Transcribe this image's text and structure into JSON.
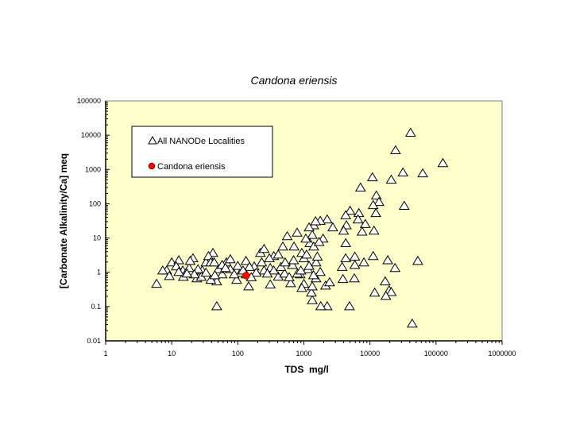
{
  "chart_data": {
    "type": "scatter",
    "title": "Candona eriensis",
    "xlabel": "TDS  mg/l",
    "ylabel": "[Carbonate Alkalinity/Ca] meq",
    "xscale": "log",
    "yscale": "log",
    "xlim": [
      1,
      1000000
    ],
    "ylim": [
      0.01,
      100000
    ],
    "xticks": [
      "1",
      "10",
      "100",
      "1000",
      "10000",
      "100000",
      "1000000"
    ],
    "yticks": [
      "0.01",
      "0.1",
      "1",
      "10",
      "100",
      "1000",
      "10000",
      "100000"
    ],
    "grid": false,
    "legend_placement": "top-left",
    "plot_background": "#FFFFCC",
    "series": [
      {
        "name": "All NANODe Localities",
        "marker": "triangle-open",
        "color": "#000000",
        "points": [
          [
            41200,
            11500
          ],
          [
            24400,
            3550
          ],
          [
            127000,
            1500
          ],
          [
            63000,
            750
          ],
          [
            31600,
            800
          ],
          [
            21000,
            490
          ],
          [
            10900,
            575
          ],
          [
            7200,
            290
          ],
          [
            12500,
            170
          ],
          [
            13700,
            110
          ],
          [
            11200,
            89
          ],
          [
            33000,
            85
          ],
          [
            12300,
            52
          ],
          [
            5000,
            61
          ],
          [
            6800,
            52
          ],
          [
            6600,
            34
          ],
          [
            8500,
            25
          ],
          [
            7600,
            15
          ],
          [
            11500,
            16
          ],
          [
            4400,
            23
          ],
          [
            4300,
            45
          ],
          [
            4000,
            16
          ],
          [
            2250,
            34
          ],
          [
            2740,
            20
          ],
          [
            1770,
            31
          ],
          [
            1410,
            23
          ],
          [
            1340,
            12
          ],
          [
            1950,
            9.4
          ],
          [
            4300,
            6.9
          ],
          [
            5900,
            2.8
          ],
          [
            4300,
            2.5
          ],
          [
            5900,
            1.6
          ],
          [
            3800,
            1.4
          ],
          [
            8100,
            1.9
          ],
          [
            11200,
            2.9
          ],
          [
            18600,
            2.2
          ],
          [
            53000,
            2.1
          ],
          [
            24000,
            1.3
          ],
          [
            17000,
            0.53
          ],
          [
            19500,
            0.29
          ],
          [
            11800,
            0.25
          ],
          [
            21000,
            0.26
          ],
          [
            17400,
            0.2
          ],
          [
            3900,
            0.62
          ],
          [
            5800,
            0.65
          ],
          [
            4900,
            0.1
          ],
          [
            43600,
            0.031
          ],
          [
            2250,
            0.1
          ],
          [
            2130,
            0.4
          ],
          [
            2450,
            0.5
          ],
          [
            1800,
            0.1
          ],
          [
            1340,
            0.15
          ],
          [
            1300,
            0.25
          ],
          [
            1000,
            0.45
          ],
          [
            5.9,
            0.45
          ],
          [
            10,
            1.9
          ],
          [
            8.4,
            1.1
          ],
          [
            12.8,
            2.2
          ],
          [
            9.2,
            0.76
          ],
          [
            14.7,
            1.1
          ],
          [
            18.3,
            1.3
          ],
          [
            21,
            2.5
          ],
          [
            24,
            0.65
          ],
          [
            29,
            1.1
          ],
          [
            33,
            1.9
          ],
          [
            42,
            3.6
          ],
          [
            36,
            2.9
          ],
          [
            48,
            0.53
          ],
          [
            48,
            0.1
          ],
          [
            58,
            0.85
          ],
          [
            67,
            1.9
          ],
          [
            77,
            1.2
          ],
          [
            96,
            0.59
          ],
          [
            110,
            0.95
          ],
          [
            133,
            2.1
          ],
          [
            146,
            0.38
          ],
          [
            177,
            1.45
          ],
          [
            220,
            3.6
          ],
          [
            250,
            4.7
          ],
          [
            310,
            1.3
          ],
          [
            350,
            2.9
          ],
          [
            410,
            0.73
          ],
          [
            480,
            5.5
          ],
          [
            560,
            11
          ],
          [
            670,
            1.6
          ],
          [
            790,
            14
          ],
          [
            880,
            0.85
          ],
          [
            1000,
            2.5
          ],
          [
            1150,
            1.2
          ],
          [
            1530,
            1.9
          ],
          [
            630,
            0.47
          ],
          [
            510,
            0.9
          ],
          [
            350,
            1.1
          ],
          [
            250,
            1.1
          ],
          [
            190,
            0.95
          ],
          [
            150,
            1.4
          ],
          [
            88,
            0.85
          ],
          [
            51,
            1.2
          ],
          [
            39,
            1.9
          ],
          [
            28,
            0.72
          ],
          [
            19,
            2.1
          ],
          [
            15,
            0.72
          ],
          [
            11.7,
            1.45
          ],
          [
            7.3,
            1.1
          ],
          [
            25,
            1.2
          ],
          [
            77,
            2.35
          ],
          [
            100,
            1.5
          ],
          [
            230,
            1.9
          ],
          [
            410,
            3.2
          ],
          [
            710,
            5.5
          ],
          [
            930,
            3.6
          ],
          [
            1230,
            6.9
          ],
          [
            1410,
            5.5
          ],
          [
            1070,
            9.4
          ],
          [
            1340,
            0.38
          ],
          [
            1530,
            0.65
          ],
          [
            1770,
            1.0
          ],
          [
            930,
            0.34
          ],
          [
            310,
            0.43
          ],
          [
            133,
            0.85
          ],
          [
            33,
            0.95
          ],
          [
            44,
            1.9
          ],
          [
            58,
            1.6
          ],
          [
            12.8,
            1.0
          ],
          [
            22,
            0.85
          ],
          [
            39,
            0.59
          ],
          [
            600,
            0.7
          ],
          [
            800,
            0.9
          ],
          [
            1200,
            1.5
          ],
          [
            1600,
            2.8
          ],
          [
            700,
            2.2
          ],
          [
            450,
            1.4
          ],
          [
            280,
            0.9
          ],
          [
            160,
            0.7
          ],
          [
            120,
            1.1
          ],
          [
            65,
            1.3
          ],
          [
            45,
            0.8
          ],
          [
            17,
            0.9
          ],
          [
            300,
            2.5
          ],
          [
            520,
            1.9
          ],
          [
            900,
            1.1
          ],
          [
            1100,
            3.2
          ],
          [
            1400,
            0.8
          ],
          [
            1700,
            7.5
          ],
          [
            1200,
            20
          ],
          [
            1500,
            30
          ]
        ]
      },
      {
        "name": "Candona eriensis",
        "marker": "circle-filled",
        "color": "#FF0000",
        "points": [
          [
            134,
            0.8
          ]
        ]
      }
    ]
  }
}
